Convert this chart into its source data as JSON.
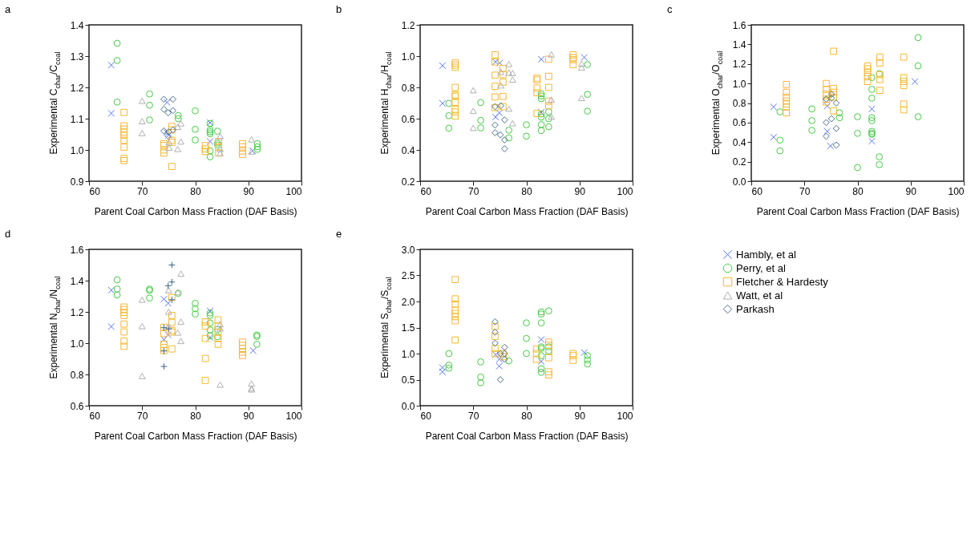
{
  "chart_data": [
    {
      "type": "scatter",
      "title": "a",
      "xlabel": "Parent Coal Carbon Mass Fraction (DAF Basis)",
      "ylabel": "Experimental C$_{char}$/C$_{coal}$",
      "xlim": [
        60,
        100
      ],
      "xticks": [
        60,
        70,
        80,
        90,
        100
      ],
      "ylim": [
        0.9,
        1.4
      ],
      "yticks": [
        {
          "value": 0.9,
          "label": "0.9"
        },
        {
          "value": 1.0,
          "label": "1.0"
        },
        {
          "value": 1.1,
          "label": "1.1"
        },
        {
          "value": 1.2,
          "label": "1.2"
        },
        {
          "value": 1.3,
          "label": "1.3"
        },
        {
          "value": 1.4,
          "label": "1.4"
        }
      ],
      "grid": false,
      "series": [
        {
          "color": "#5a78f0",
          "marker": "cross",
          "x": [
            64.2,
            64.2,
            74.7,
            74.6,
            75.0,
            82.8,
            82.8,
            90.8
          ],
          "values": [
            1.271,
            1.117,
            1.152,
            1.056,
            1.047,
            1.087,
            1.027,
            0.997
          ]
        },
        {
          "color": "#44cc44",
          "marker": "circle",
          "x": [
            65.3,
            65.3,
            65.3,
            71.4,
            71.4,
            71.4,
            76.8,
            76.8,
            80,
            80,
            80,
            82.8,
            82.8,
            82.8,
            82.8,
            82.8,
            82.8,
            84.2,
            84.2,
            84.2,
            91.7,
            91.7,
            91.7
          ],
          "values": [
            1.341,
            1.286,
            1.153,
            1.179,
            1.143,
            1.096,
            1.11,
            1.1,
            1.125,
            1.066,
            1.032,
            1.085,
            1.064,
            1.058,
            1.052,
            0.997,
            0.978,
            1.06,
            1.022,
            1.016,
            1.02,
            1.01,
            1.002
          ]
        },
        {
          "color": "#f7b733",
          "marker": "square",
          "x": [
            66.6,
            66.6,
            66.6,
            66.6,
            66.6,
            66.6,
            66.6,
            66.6,
            66.6,
            74.1,
            74.1,
            74.1,
            74.1,
            75.6,
            75.6,
            75.6,
            75.6,
            75.6,
            81.9,
            81.9,
            81.9,
            84.4,
            84.4,
            84.4,
            88.9,
            88.9,
            88.9,
            88.9
          ],
          "values": [
            1.12,
            1.077,
            1.067,
            1.057,
            1.047,
            1.031,
            1.009,
            0.973,
            0.966,
            1.02,
            1.014,
            1.0,
            0.99,
            1.075,
            1.064,
            1.031,
            1.024,
            0.947,
            1.014,
            1.003,
            0.995,
            1.027,
            1.01,
            0.99,
            1.02,
            1.01,
            0.997,
            0.986
          ]
        },
        {
          "color": "#b0b0b0",
          "marker": "triangle",
          "x": [
            70,
            70,
            70,
            75.1,
            75.1,
            76.7,
            76.7,
            77.3,
            77.3,
            84.7,
            84.7,
            84.7,
            90.6,
            90.6
          ],
          "values": [
            1.157,
            1.092,
            1.054,
            1.024,
            1.007,
            1.074,
            1.003,
            1.085,
            1.027,
            1.044,
            1.003,
            0.99,
            1.034,
            0.995
          ]
        },
        {
          "color": "#4a7090",
          "marker": "diamond",
          "x": [
            74.1,
            75.8,
            74.1,
            75.8,
            74.9,
            74.1,
            75.0,
            75.8,
            74.9
          ],
          "values": [
            1.162,
            1.162,
            1.13,
            1.126,
            1.119,
            1.061,
            1.058,
            1.064,
            1.044
          ]
        }
      ]
    },
    {
      "type": "scatter",
      "title": "b",
      "xlabel": "Parent Coal Carbon Mass Fraction (DAF Basis)",
      "ylabel": "Experimental H$_{char}$/H$_{coal}$",
      "xlim": [
        60,
        100
      ],
      "xticks": [
        60,
        70,
        80,
        90,
        100
      ],
      "ylim": [
        0.2,
        1.2
      ],
      "yticks": [
        0.2,
        0.4,
        0.6,
        0.8,
        {
          "value": 1.0,
          "label": "1.0"
        },
        1.2
      ],
      "grid": false,
      "series": [
        {
          "color": "#5a78f0",
          "marker": "cross",
          "x": [
            64.2,
            64.2,
            74.2,
            75.0,
            74.2,
            74.9,
            82.8,
            82.8,
            90.9
          ],
          "values": [
            0.939,
            0.698,
            0.963,
            0.956,
            0.61,
            0.637,
            0.98,
            0.641,
            0.992
          ]
        },
        {
          "color": "#44cc44",
          "marker": "circle",
          "x": [
            65.4,
            65.4,
            65.4,
            71.4,
            71.4,
            71.4,
            76.7,
            76.7,
            80,
            80,
            82.8,
            82.8,
            82.8,
            82.8,
            82.8,
            82.8,
            82.8,
            84.2,
            84.2,
            84.2,
            91.5,
            91.5,
            91.5
          ],
          "values": [
            0.698,
            0.619,
            0.539,
            0.703,
            0.589,
            0.541,
            0.526,
            0.477,
            0.561,
            0.488,
            0.759,
            0.745,
            0.728,
            0.63,
            0.61,
            0.562,
            0.524,
            0.644,
            0.6,
            0.548,
            0.946,
            0.755,
            0.648
          ]
        },
        {
          "color": "#f7b733",
          "marker": "square",
          "x": [
            66.6,
            66.6,
            66.6,
            66.6,
            66.6,
            66.6,
            66.6,
            66.6,
            66.6,
            66.6,
            74.1,
            74.1,
            74.1,
            74.1,
            74.1,
            74.1,
            75.6,
            75.6,
            75.6,
            75.6,
            75.6,
            82,
            82,
            82,
            82,
            82,
            84.2,
            84.2,
            84.2,
            84.2,
            84.2,
            88.8,
            88.8,
            88.8,
            88.8
          ],
          "values": [
            0.956,
            0.943,
            0.929,
            0.8,
            0.752,
            0.743,
            0.705,
            0.66,
            0.643,
            0.616,
            1.008,
            0.963,
            0.878,
            0.807,
            0.739,
            0.671,
            0.922,
            0.882,
            0.834,
            0.743,
            0.677,
            0.859,
            0.848,
            0.796,
            0.766,
            0.633,
            0.98,
            0.871,
            0.8,
            0.712,
            0.682,
            1.008,
            0.99,
            0.977,
            0.946
          ]
        },
        {
          "color": "#b0b0b0",
          "marker": "triangle",
          "x": [
            70,
            70,
            70,
            75.2,
            75.2,
            76.7,
            76.7,
            76.7,
            77.4,
            77.4,
            77.4,
            84.7,
            84.7,
            84.7,
            90.4,
            90.4,
            90.4
          ],
          "values": [
            0.782,
            0.65,
            0.541,
            0.899,
            0.813,
            0.95,
            0.895,
            0.664,
            0.892,
            0.85,
            0.571,
            1.011,
            0.722,
            0.613,
            0.952,
            0.927,
            0.732
          ]
        },
        {
          "color": "#4a7090",
          "marker": "diamond",
          "x": [
            74.1,
            75.2,
            74.1,
            74.1,
            75.1,
            75.9,
            75.9,
            75.9
          ],
          "values": [
            0.677,
            0.683,
            0.559,
            0.51,
            0.496,
            0.592,
            0.464,
            0.408
          ]
        }
      ]
    },
    {
      "type": "scatter",
      "title": "c",
      "xlabel": "Parent Coal Carbon Mass Fraction (DAF Basis)",
      "ylabel": "Experimental O$_{char}$/O$_{coal}$",
      "xlim": [
        60,
        100
      ],
      "xticks": [
        60,
        70,
        80,
        90,
        100
      ],
      "ylim": [
        0,
        1.6
      ],
      "yticks": [
        {
          "value": 0,
          "label": "0.0"
        },
        0.2,
        0.4,
        0.6,
        0.8,
        {
          "value": 1.0,
          "label": "1.0"
        },
        1.2,
        1.4,
        1.6
      ],
      "grid": false,
      "series": [
        {
          "color": "#5a78f0",
          "marker": "cross",
          "x": [
            64.2,
            64.2,
            74.3,
            74.3,
            74.9,
            82.7,
            82.7,
            90.8
          ],
          "values": [
            0.76,
            0.45,
            0.77,
            0.51,
            0.36,
            0.74,
            0.41,
            1.02
          ]
        },
        {
          "color": "#44cc44",
          "marker": "circle",
          "x": [
            65.4,
            65.4,
            65.4,
            71.4,
            71.4,
            71.4,
            76.6,
            76.6,
            80,
            80,
            80,
            82.7,
            82.7,
            82.7,
            82.7,
            82.7,
            82.7,
            82.7,
            82.7,
            84.1,
            84.1,
            84.1,
            91.4,
            91.4,
            91.4
          ],
          "values": [
            0.71,
            0.42,
            0.31,
            0.74,
            0.62,
            0.52,
            0.7,
            0.65,
            0.66,
            0.49,
            0.14,
            1.06,
            0.94,
            0.85,
            0.65,
            0.62,
            0.51,
            0.49,
            0.48,
            1.1,
            0.25,
            0.17,
            1.47,
            1.18,
            0.66
          ]
        },
        {
          "color": "#f7b733",
          "marker": "square",
          "x": [
            66.6,
            66.6,
            66.6,
            66.6,
            66.6,
            66.6,
            66.6,
            74.1,
            74.1,
            74.1,
            74.1,
            74.1,
            75.5,
            75.5,
            75.5,
            75.5,
            75.5,
            81.9,
            81.9,
            81.9,
            81.9,
            81.9,
            84.2,
            84.2,
            84.2,
            84.2,
            84.2,
            88.7,
            88.7,
            88.7,
            88.7,
            88.7,
            88.7
          ],
          "values": [
            0.99,
            0.91,
            0.86,
            0.82,
            0.79,
            0.76,
            0.7,
            1.0,
            0.94,
            0.89,
            0.84,
            0.81,
            1.33,
            0.95,
            0.91,
            0.86,
            0.72,
            1.18,
            1.15,
            1.11,
            1.07,
            1.02,
            1.27,
            1.21,
            1.09,
            1.04,
            0.93,
            1.27,
            1.06,
            1.02,
            0.98,
            0.79,
            0.73
          ]
        },
        {
          "color": "#4a7090",
          "marker": "diamond",
          "x": [
            74.1,
            75.1,
            75.1,
            76.0,
            74.1,
            75.1,
            76.0,
            74.1,
            76.0
          ],
          "values": [
            0.84,
            0.89,
            0.85,
            0.8,
            0.6,
            0.64,
            0.54,
            0.46,
            0.37
          ]
        }
      ]
    },
    {
      "type": "scatter",
      "title": "d",
      "xlabel": "Parent Coal Carbon Mass Fraction (DAF Basis)",
      "ylabel": "Experimental N$_{char}$/N$_{coal}$",
      "xlim": [
        60,
        100
      ],
      "xticks": [
        60,
        70,
        80,
        90,
        100
      ],
      "ylim": [
        0.6,
        1.6
      ],
      "yticks": [
        0.6,
        0.8,
        {
          "value": 1.0,
          "label": "1.0"
        },
        1.2,
        1.4,
        1.6
      ],
      "grid": false,
      "series": [
        {
          "color": "#5a78f0",
          "marker": "cross",
          "x": [
            64.2,
            64.2,
            74.1,
            74.9,
            74.1,
            74.9,
            82.8,
            82.8,
            90.9
          ],
          "values": [
            1.339,
            1.106,
            1.282,
            1.255,
            1.024,
            1.054,
            1.206,
            1.037,
            0.952
          ]
        },
        {
          "color": "#44cc44",
          "marker": "circle",
          "x": [
            65.3,
            65.3,
            65.3,
            71.4,
            71.4,
            71.4,
            76.8,
            80,
            80,
            80,
            82.8,
            82.8,
            82.8,
            82.8,
            82.8,
            84.2,
            84.2,
            91.6,
            91.6,
            91.6
          ],
          "values": [
            1.405,
            1.346,
            1.308,
            1.346,
            1.337,
            1.288,
            1.319,
            1.255,
            1.22,
            1.186,
            1.193,
            1.177,
            1.129,
            1.084,
            1.048,
            1.088,
            1.041,
            1.052,
            1.043,
            0.993
          ]
        },
        {
          "color": "#f7b733",
          "marker": "square",
          "x": [
            66.6,
            66.6,
            66.6,
            66.6,
            66.6,
            66.6,
            66.6,
            66.6,
            74.1,
            74.1,
            74.1,
            74.1,
            74.1,
            75.6,
            75.6,
            75.6,
            75.6,
            75.6,
            75.6,
            81.9,
            81.9,
            81.9,
            81.9,
            81.9,
            84.3,
            84.3,
            84.3,
            84.3,
            84.3,
            88.9,
            88.9,
            88.9,
            88.9,
            88.9
          ],
          "values": [
            1.231,
            1.215,
            1.197,
            1.177,
            1.122,
            1.072,
            1.014,
            0.98,
            1.102,
            1.061,
            0.993,
            0.973,
            0.952,
            1.292,
            1.177,
            1.133,
            1.081,
            1.071,
            0.963,
            1.136,
            1.109,
            1.03,
            0.902,
            0.762,
            1.149,
            1.109,
            1.071,
            1.03,
            0.993,
            1.007,
            0.986,
            0.966,
            0.943,
            0.921
          ]
        },
        {
          "color": "#b0b0b0",
          "marker": "triangle",
          "x": [
            70,
            70,
            70,
            75,
            75,
            75,
            76.7,
            76.7,
            77.3,
            77.3,
            77.3,
            84.7,
            84.7,
            84.7,
            90.6,
            90.6,
            90.6
          ],
          "values": [
            1.278,
            1.109,
            0.79,
            1.339,
            1.201,
            1.109,
            1.326,
            1.068,
            1.445,
            1.138,
            1.014,
            1.122,
            1.095,
            0.735,
            0.742,
            0.711,
            0.704
          ]
        },
        {
          "color": "#3f6585",
          "marker": "plus",
          "x": [
            75.6,
            75.6,
            74.9,
            75.6,
            74.1,
            75.0,
            74.1,
            74.1
          ],
          "values": [
            1.5,
            1.391,
            1.367,
            1.278,
            1.099,
            1.091,
            0.95,
            0.851
          ]
        }
      ]
    },
    {
      "type": "scatter",
      "title": "e",
      "xlabel": "Parent Coal Carbon Mass Fraction (DAF Basis)",
      "ylabel": "Experimental S$_{char}$/S$_{coal}$",
      "xlim": [
        60,
        100
      ],
      "xticks": [
        60,
        70,
        80,
        90,
        100
      ],
      "ylim": [
        0,
        3
      ],
      "yticks": [
        {
          "value": 0,
          "label": "0.0"
        },
        0.5,
        {
          "value": 1,
          "label": "1.0"
        },
        1.5,
        {
          "value": 2,
          "label": "2.0"
        },
        2.5,
        {
          "value": 3,
          "label": "3.0"
        }
      ],
      "grid": false,
      "legend": "right",
      "series": [
        {
          "name": "Hambly, et al",
          "color": "#5a78f0",
          "marker": "cross",
          "x": [
            64.2,
            64.2,
            74.2,
            74.9,
            74.9,
            82.8,
            82.8,
            90.9
          ],
          "values": [
            0.73,
            0.65,
            0.98,
            0.89,
            0.76,
            1.27,
            0.85,
            1.02
          ]
        },
        {
          "name": "Perry, et al",
          "color": "#44cc44",
          "marker": "circle",
          "x": [
            65.4,
            65.4,
            65.4,
            71.4,
            71.4,
            71.4,
            76.7,
            80,
            80,
            80,
            82.8,
            82.8,
            82.8,
            82.8,
            82.8,
            82.8,
            82.8,
            82.8,
            84.2,
            84.2,
            84.2,
            91.5,
            91.5,
            91.5
          ],
          "values": [
            1.0,
            0.78,
            0.72,
            0.84,
            0.55,
            0.44,
            0.86,
            1.59,
            1.29,
            1.0,
            1.8,
            1.76,
            1.59,
            1.13,
            1.1,
            0.96,
            0.71,
            0.64,
            1.82,
            1.13,
            1.05,
            0.96,
            0.88,
            0.8
          ]
        },
        {
          "name": "Fletcher & Hardesty",
          "color": "#f7b733",
          "marker": "square",
          "x": [
            66.6,
            66.6,
            66.6,
            66.6,
            66.6,
            66.6,
            66.6,
            66.6,
            74.1,
            74.1,
            74.1,
            74.1,
            75.6,
            75.6,
            81.9,
            81.9,
            81.9,
            84.2,
            84.2,
            84.2,
            84.2,
            84.2,
            84.2,
            88.8,
            88.8,
            88.8
          ],
          "values": [
            2.42,
            2.05,
            1.95,
            1.83,
            1.77,
            1.71,
            1.63,
            1.26,
            1.52,
            1.33,
            1.1,
            1.0,
            1.0,
            0.94,
            1.09,
            1.0,
            0.89,
            1.22,
            1.16,
            1.04,
            0.92,
            0.65,
            0.59,
            1.0,
            0.96,
            0.87
          ]
        },
        {
          "name": "Watt, et al",
          "color": "#b0b0b0",
          "marker": "triangle"
        },
        {
          "name": "Parkash",
          "color": "#4a7090",
          "marker": "diamond",
          "x": [
            74.1,
            74.1,
            74.1,
            75.9,
            75.1,
            75.9,
            75.9,
            75.1
          ],
          "values": [
            1.61,
            1.41,
            1.2,
            1.12,
            1.0,
            1.0,
            0.89,
            0.5
          ]
        }
      ]
    }
  ]
}
